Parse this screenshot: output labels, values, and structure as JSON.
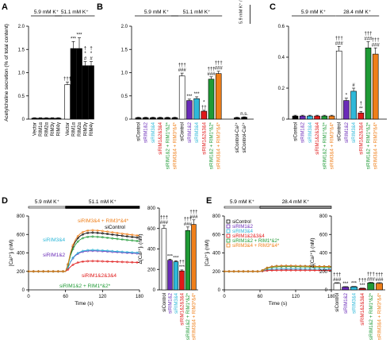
{
  "panels": [
    {
      "id": "A",
      "letter": "A",
      "ylabel": "Acetylcholine secretion (% of total content)",
      "ylim": [
        0,
        2
      ],
      "yticks": [
        "0",
        "0.5",
        "1.0",
        "1.5",
        "2.0"
      ],
      "conditions": [
        {
          "label": "5.9 mM K⁺",
          "from": 0,
          "to": 4
        },
        {
          "label": "51.1 mM K⁺",
          "from": 4,
          "to": 9
        }
      ],
      "categories": [
        "Vector",
        "RIM1α",
        "RIM2α",
        "RIM3γ",
        "RIM4γ",
        "Vector",
        "RIM1α",
        "RIM2α",
        "RIM3γ",
        "RIM4γ"
      ],
      "values": [
        0.02,
        0.02,
        0.02,
        0.02,
        0.02,
        0.74,
        1.52,
        1.52,
        1.15,
        1.15
      ],
      "errors": [
        0.01,
        0.01,
        0.01,
        0.01,
        0.01,
        0.06,
        0.15,
        0.23,
        0.09,
        0.09
      ],
      "fills": [
        "#000",
        "#000",
        "#000",
        "#000",
        "#000",
        "#ffffff",
        "#000",
        "#000",
        "#000",
        "#000"
      ],
      "annotations": [
        "",
        "",
        "",
        "",
        "",
        "†††",
        "***",
        "***",
        "†\n*\n#",
        "†\n*\n#"
      ]
    },
    {
      "id": "B",
      "letter": "B",
      "ylim": [
        0,
        2
      ],
      "yticks": [
        "0",
        "0.5",
        "1.0",
        "1.5",
        "2.0"
      ],
      "conditions": [
        {
          "label": "5.9 mM K⁺",
          "from": 0,
          "to": 5
        },
        {
          "label": "51.1 mM K⁺",
          "from": 5,
          "to": 11
        },
        {
          "label": "5.9 mM K⁺ / 51.1 mM K⁺",
          "from": 12,
          "to": 13,
          "rotated": true
        }
      ],
      "categories": [
        "siControl",
        "siRIM1&2",
        "siRIM3&4",
        "siRIM1&2&3&4",
        "siRIM1&2 + RIM1*&2*",
        "siRIM3&4 + RIM3*&4*",
        "siControl",
        "siRIM1&2",
        "siRIM3&4",
        "siRIM1&2&3&4",
        "siRIM1&2 + RIM1*&2*",
        "siRIM3&4 + RIM3*&4*",
        "siControl-Ca²⁺",
        "siControl-Ca²⁺"
      ],
      "values": [
        0.03,
        0.03,
        0.03,
        0.03,
        0.03,
        0.03,
        0.93,
        0.4,
        0.44,
        0.17,
        0.86,
        0.98,
        0.03,
        0.04
      ],
      "errors": [
        0.01,
        0.01,
        0.01,
        0.01,
        0.01,
        0.01,
        0.06,
        0.03,
        0.04,
        0.02,
        0.05,
        0.05,
        0.01,
        0.01
      ],
      "fills": [
        "#000",
        "#000",
        "#000",
        "#000",
        "#000",
        "#000",
        "#ffffff",
        "#6a2bb8",
        "#2eb8d9",
        "#e01818",
        "#1f9a35",
        "#ef7f1a",
        "#000",
        "#000"
      ],
      "label_colors": [
        "#000",
        "#6a2bb8",
        "#2eb8d9",
        "#e01818",
        "#1f9a35",
        "#ef7f1a",
        "#000",
        "#6a2bb8",
        "#2eb8d9",
        "#e01818",
        "#1f9a35",
        "#ef7f1a",
        "#000",
        "#000"
      ],
      "annotations": [
        "",
        "",
        "",
        "",
        "",
        "",
        "†††\n###",
        "***",
        "***",
        "*\n††",
        "†††\n###",
        "†††\n###",
        "",
        "n.s."
      ]
    },
    {
      "id": "C",
      "letter": "C",
      "ylim": [
        0,
        0.6
      ],
      "yticks": [
        "0",
        "0.2",
        "0.4",
        "0.6"
      ],
      "conditions": [
        {
          "label": "5.9 mM K⁺",
          "from": 0,
          "to": 5
        },
        {
          "label": "28.4 mM K⁺",
          "from": 6,
          "to": 11
        }
      ],
      "categories": [
        "siControl",
        "siRIM1&2",
        "siRIM3&4",
        "siRIM1&2&3&4",
        "siRIM1&2 + RIM1*&2*",
        "siRIM3&4 + RIM3*&4*",
        "siControl",
        "siRIM1&2",
        "siRIM3&4",
        "siRIM1&2&3&4",
        "siRIM1&2 + RIM1*&2*",
        "siRIM3&4 + RIM3*&4*"
      ],
      "values": [
        0.02,
        0.02,
        0.02,
        0.02,
        0.02,
        0.02,
        0.44,
        0.12,
        0.18,
        0.04,
        0.46,
        0.42
      ],
      "errors": [
        0.005,
        0.005,
        0.005,
        0.005,
        0.005,
        0.005,
        0.03,
        0.015,
        0.02,
        0.01,
        0.04,
        0.04
      ],
      "fills": [
        "#000",
        "#6a2bb8",
        "#2eb8d9",
        "#e01818",
        "#1f9a35",
        "#ef7f1a",
        "#ffffff",
        "#6a2bb8",
        "#2eb8d9",
        "#e01818",
        "#1f9a35",
        "#ef7f1a"
      ],
      "label_colors": [
        "#000",
        "#6a2bb8",
        "#2eb8d9",
        "#e01818",
        "#1f9a35",
        "#ef7f1a",
        "#000",
        "#6a2bb8",
        "#2eb8d9",
        "#e01818",
        "#1f9a35",
        "#ef7f1a"
      ],
      "annotations": [
        "",
        "",
        "",
        "",
        "",
        "",
        "†††\n###",
        "*",
        "#",
        "†\n**",
        "†††\n###",
        "†††\n###"
      ]
    }
  ],
  "traces": [
    {
      "id": "D",
      "letter": "D",
      "stim_labels": [
        "5.9 mM K⁺",
        "51.1 mM K⁺"
      ],
      "ylabel": "[Ca²⁺]ᵢ (nM)",
      "xlabel": "Time (s)",
      "xticks": [
        "0",
        "60",
        "120",
        "180"
      ],
      "yticks": [
        "0",
        "200",
        "400",
        "600",
        "800"
      ],
      "xlim": [
        0,
        180
      ],
      "ylim": [
        0,
        800
      ],
      "series": [
        {
          "name": "siControl",
          "color": "#000000",
          "baseline": 200,
          "peak": 690
        },
        {
          "name": "siRIM1&2",
          "color": "#6a2bb8",
          "baseline": 200,
          "peak": 460
        },
        {
          "name": "siRIM3&4",
          "color": "#2eb8d9",
          "baseline": 200,
          "peak": 470
        },
        {
          "name": "siRIM1&2&3&4",
          "color": "#e01818",
          "baseline": 200,
          "peak": 330
        },
        {
          "name": "siRIM1&2 + RIM1*&2*",
          "color": "#1f9a35",
          "baseline": 200,
          "peak": 640
        },
        {
          "name": "siRIM3&4 + RIM3*&4*",
          "color": "#ef7f1a",
          "baseline": 200,
          "peak": 720
        }
      ],
      "inset": {
        "ylabel": "Δ[Ca²⁺]ᵢ (nM)",
        "ylim": [
          0,
          800
        ],
        "yticks": [
          "0",
          "200",
          "400",
          "600",
          "800"
        ],
        "categories": [
          "siControl",
          "siRIM1&2",
          "siRIM3&4",
          "siRIM1&2&3&4",
          "siRIM1&2 + RIM1*&2*",
          "siRIM3&4 + RIM3*&4*"
        ],
        "values": [
          600,
          290,
          275,
          185,
          580,
          640
        ],
        "errors": [
          30,
          10,
          10,
          10,
          35,
          45
        ],
        "annotations": [
          "†††\n###",
          "***",
          "***",
          "††\n***",
          "†††\n###",
          "†††\n###"
        ]
      }
    },
    {
      "id": "E",
      "letter": "E",
      "stim_labels": [
        "5.9 mM K⁺",
        "28.4 mM K⁺"
      ],
      "ylabel": "[Ca²⁺]ᵢ (nM)",
      "xlabel": "Time (s)",
      "xticks": [
        "0",
        "60",
        "120",
        "180"
      ],
      "yticks": [
        "0",
        "200",
        "400",
        "600",
        "800"
      ],
      "xlim": [
        0,
        180
      ],
      "ylim": [
        0,
        800
      ],
      "series": [
        {
          "name": "siControl",
          "color": "#000000",
          "baseline": 200,
          "peak": 270
        },
        {
          "name": "siRIM1&2",
          "color": "#6a2bb8",
          "baseline": 200,
          "peak": 230
        },
        {
          "name": "siRIM3&4",
          "color": "#2eb8d9",
          "baseline": 200,
          "peak": 230
        },
        {
          "name": "siRIM1&2&3&4",
          "color": "#e01818",
          "baseline": 200,
          "peak": 215
        },
        {
          "name": "siRIM1&2 + RIM1*&2*",
          "color": "#1f9a35",
          "baseline": 200,
          "peak": 260
        },
        {
          "name": "siRIM3&4 + RIM3*&4*",
          "color": "#ef7f1a",
          "baseline": 200,
          "peak": 270
        }
      ],
      "inset": {
        "ylabel": "Δ[Ca²⁺]ᵢ (nM)",
        "ylim": [
          0,
          800
        ],
        "yticks": [
          "0",
          "200",
          "400",
          "600",
          "800"
        ],
        "categories": [
          "siControl",
          "siRIM1&2",
          "siRIM3&4",
          "siRIM1&2&3&4",
          "siRIM1&2 + RIM1*&2*",
          "siRIM3&4 + RIM3*&4*"
        ],
        "values": [
          70,
          30,
          32,
          15,
          75,
          70
        ],
        "errors": [
          8,
          5,
          5,
          4,
          8,
          8
        ],
        "annotations": [
          "†††\n###",
          "***",
          "***",
          "†††\n***",
          "†††\n###",
          "†††\n###"
        ]
      }
    }
  ],
  "chart_data": [
    {
      "type": "bar",
      "panel": "A",
      "title": "",
      "ylabel": "Acetylcholine secretion (% of total content)",
      "ylim": [
        0,
        2
      ],
      "categories": [
        "Vector",
        "RIM1α",
        "RIM2α",
        "RIM3γ",
        "RIM4γ"
      ],
      "series": [
        {
          "name": "5.9 mM K⁺",
          "values": [
            0.02,
            0.02,
            0.02,
            0.02,
            0.02
          ]
        },
        {
          "name": "51.1 mM K⁺",
          "values": [
            0.74,
            1.52,
            1.52,
            1.15,
            1.15
          ]
        }
      ]
    },
    {
      "type": "bar",
      "panel": "B",
      "ylim": [
        0,
        2
      ],
      "categories": [
        "siControl",
        "siRIM1&2",
        "siRIM3&4",
        "siRIM1&2&3&4",
        "siRIM1&2 + RIM1*&2*",
        "siRIM3&4 + RIM3*&4*"
      ],
      "series": [
        {
          "name": "5.9 mM K⁺",
          "values": [
            0.03,
            0.03,
            0.03,
            0.03,
            0.03,
            0.03
          ]
        },
        {
          "name": "51.1 mM K⁺",
          "values": [
            0.93,
            0.4,
            0.44,
            0.17,
            0.86,
            0.98
          ]
        }
      ]
    },
    {
      "type": "bar",
      "panel": "C",
      "ylim": [
        0,
        0.6
      ],
      "categories": [
        "siControl",
        "siRIM1&2",
        "siRIM3&4",
        "siRIM1&2&3&4",
        "siRIM1&2 + RIM1*&2*",
        "siRIM3&4 + RIM3*&4*"
      ],
      "series": [
        {
          "name": "5.9 mM K⁺",
          "values": [
            0.02,
            0.02,
            0.02,
            0.02,
            0.02,
            0.02
          ]
        },
        {
          "name": "28.4 mM K⁺",
          "values": [
            0.44,
            0.12,
            0.18,
            0.04,
            0.46,
            0.42
          ]
        }
      ]
    },
    {
      "type": "line",
      "panel": "D",
      "xlabel": "Time (s)",
      "ylabel": "[Ca²⁺]ᵢ (nM)",
      "xlim": [
        0,
        180
      ],
      "ylim": [
        0,
        800
      ]
    },
    {
      "type": "bar",
      "panel": "D-inset",
      "ylabel": "Δ[Ca²⁺]ᵢ (nM)",
      "ylim": [
        0,
        800
      ],
      "categories": [
        "siControl",
        "siRIM1&2",
        "siRIM3&4",
        "siRIM1&2&3&4",
        "siRIM1&2 + RIM1*&2*",
        "siRIM3&4 + RIM3*&4*"
      ],
      "values": [
        600,
        290,
        275,
        185,
        580,
        640
      ]
    },
    {
      "type": "line",
      "panel": "E",
      "xlabel": "Time (s)",
      "ylabel": "[Ca²⁺]ᵢ (nM)",
      "xlim": [
        0,
        180
      ],
      "ylim": [
        0,
        800
      ]
    },
    {
      "type": "bar",
      "panel": "E-inset",
      "ylabel": "Δ[Ca²⁺]ᵢ (nM)",
      "ylim": [
        0,
        800
      ],
      "categories": [
        "siControl",
        "siRIM1&2",
        "siRIM3&4",
        "siRIM1&2&3&4",
        "siRIM1&2 + RIM1*&2*",
        "siRIM3&4 + RIM3*&4*"
      ],
      "values": [
        70,
        30,
        32,
        15,
        75,
        70
      ]
    }
  ]
}
